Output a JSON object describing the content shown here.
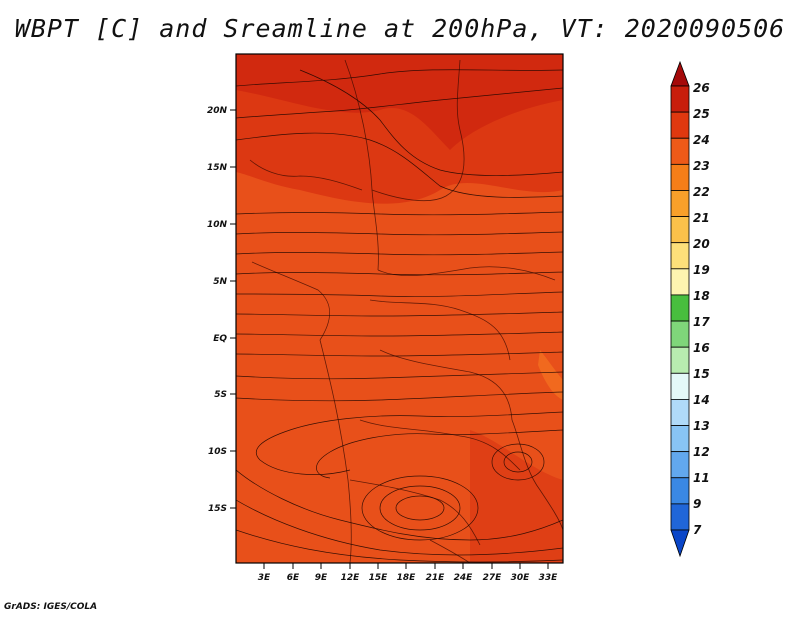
{
  "title": "WBPT [C] and Sreamline at 200hPa, VT: 2020090506",
  "footer": "GrADS: IGES/COLA",
  "map": {
    "variable": "Wet-bulb potential temperature",
    "level": "200hPa",
    "field_colors": {
      "dominant": "#e8501a",
      "warm": "#d93412",
      "hot": "#c81e0c",
      "cool": "#f26b1f"
    },
    "lat_ticks": [
      "20N",
      "15N",
      "10N",
      "5N",
      "EQ",
      "5S",
      "10S",
      "15S"
    ],
    "lon_ticks": [
      "3E",
      "6E",
      "9E",
      "12E",
      "15E",
      "18E",
      "21E",
      "24E",
      "27E",
      "30E",
      "33E"
    ]
  },
  "colorbar": {
    "labels": [
      "26",
      "25",
      "24",
      "23",
      "22",
      "21",
      "20",
      "19",
      "18",
      "17",
      "16",
      "15",
      "14",
      "13",
      "12",
      "11",
      "9",
      "7"
    ],
    "colors": [
      "#a50a0a",
      "#c81e0c",
      "#e0380f",
      "#ee5a18",
      "#f57e18",
      "#f8a02a",
      "#fbc14a",
      "#fde07a",
      "#fdf4b0",
      "#48be3e",
      "#7fd67a",
      "#b8ecb0",
      "#e4f8f8",
      "#b0daf8",
      "#88c4f4",
      "#62a8ee",
      "#3a88e4",
      "#2066d8",
      "#0a46c8"
    ]
  }
}
